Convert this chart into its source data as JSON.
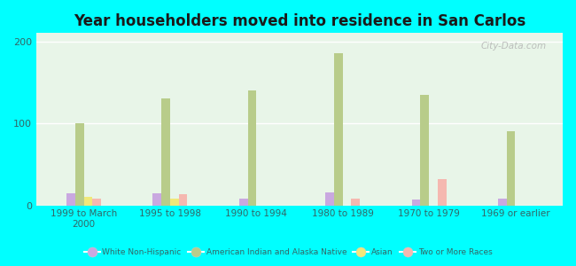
{
  "title": "Year householders moved into residence in San Carlos",
  "categories": [
    "1999 to March\n2000",
    "1995 to 1998",
    "1990 to 1994",
    "1980 to 1989",
    "1970 to 1979",
    "1969 or earlier"
  ],
  "series": {
    "White Non-Hispanic": [
      15,
      15,
      8,
      16,
      7,
      8
    ],
    "American Indian and Alaska Native": [
      100,
      130,
      140,
      185,
      135,
      90
    ],
    "Asian": [
      10,
      8,
      0,
      0,
      0,
      0
    ],
    "Two or More Races": [
      8,
      14,
      0,
      8,
      32,
      0
    ]
  },
  "colors": {
    "White Non-Hispanic": "#c9a8e0",
    "American Indian and Alaska Native": "#b8cc8a",
    "Asian": "#f0e87a",
    "Two or More Races": "#f5b8b0"
  },
  "bar_width": 0.1,
  "ylim": [
    0,
    210
  ],
  "yticks": [
    0,
    100,
    200
  ],
  "background_color": "#00ffff",
  "plot_bg_top": "#f5fff5",
  "plot_bg_bottom": "#d8f0d8",
  "title_color": "#1a1a1a",
  "tick_color": "#336666",
  "watermark": "City-Data.com",
  "legend_names": [
    "White Non-Hispanic",
    "American Indian and Alaska Native",
    "Asian",
    "Two or More Races"
  ]
}
